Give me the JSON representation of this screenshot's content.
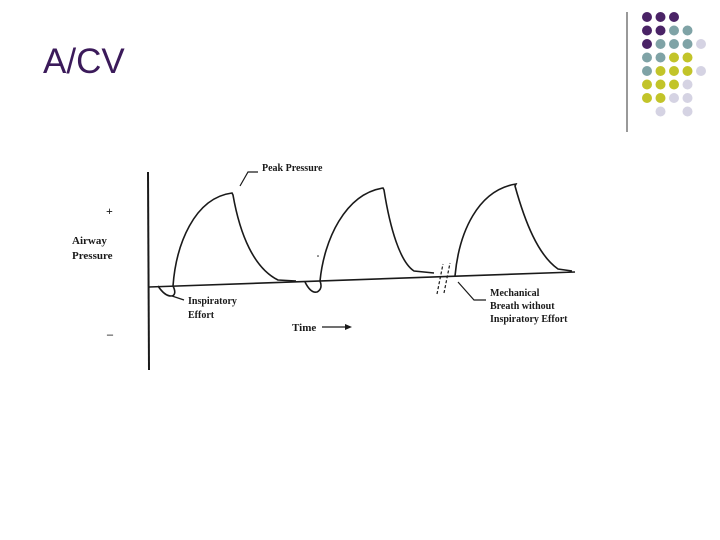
{
  "slide": {
    "title": "A/CV"
  },
  "decoration": {
    "grid": [
      [
        "purple",
        "purple",
        "purple",
        null,
        null
      ],
      [
        "purple",
        "purple",
        "teal",
        "teal",
        null
      ],
      [
        "purple",
        "teal",
        "teal",
        "teal",
        "lavender"
      ],
      [
        "teal",
        "teal",
        "olive",
        "olive",
        null
      ],
      [
        "teal",
        "olive",
        "olive",
        "olive",
        "lavender"
      ],
      [
        "olive",
        "olive",
        "olive",
        "lavender",
        null
      ],
      [
        "olive",
        "olive",
        "lavender",
        "lavender",
        null
      ],
      [
        null,
        "lavender",
        null,
        "lavender",
        null
      ]
    ],
    "colors": {
      "purple": "#4a2366",
      "teal": "#7fa3a6",
      "olive": "#c2c429",
      "lavender": "#d5d3e3",
      "divider": "#555555"
    }
  },
  "diagram": {
    "axis_y_top": "+",
    "axis_y_label_line1": "Airway",
    "axis_y_label_line2": "Pressure",
    "axis_y_bottom": "–",
    "peak_label": "Peak Pressure",
    "effort_label_line1": "Inspiratory",
    "effort_label_line2": "Effort",
    "time_label": "Time",
    "mech_label_line1": "Mechanical",
    "mech_label_line2": "Breath without",
    "mech_label_line3": "Inspiratory Effort",
    "line_color": "#1a1a1a"
  }
}
